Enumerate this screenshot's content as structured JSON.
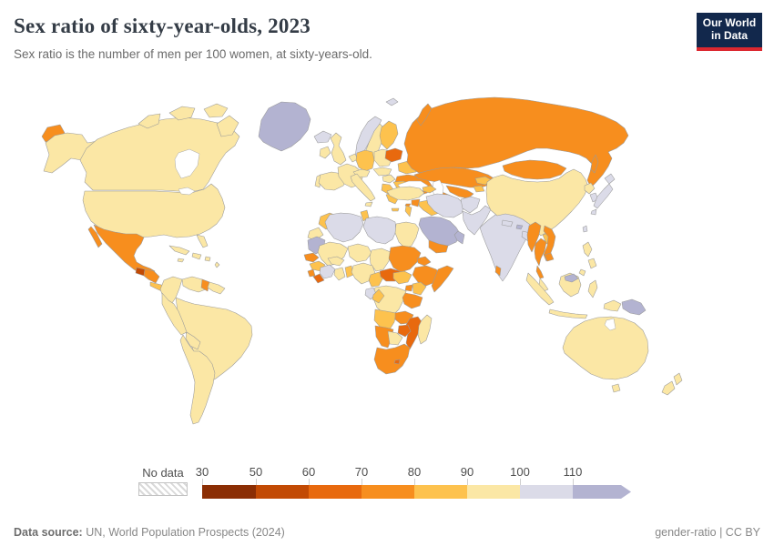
{
  "header": {
    "title": "Sex ratio of sixty-year-olds, 2023",
    "subtitle": "Sex ratio is the number of men per 100 women, at sixty-years-old.",
    "logo": {
      "line1": "Our World",
      "line2": "in Data",
      "bg_color": "#12284c",
      "accent_color": "#dc2830"
    }
  },
  "legend": {
    "no_data_label": "No data",
    "ticks": [
      "30",
      "50",
      "60",
      "70",
      "80",
      "90",
      "100",
      "110"
    ],
    "segments": [
      "b30_50",
      "b50_60",
      "b60_70",
      "b70_80",
      "b80_90",
      "b90_100",
      "b100_110",
      "b110plus"
    ],
    "bin_colors": {
      "b30_50": "#8B2E04",
      "b50_60": "#C24A04",
      "b60_70": "#E8690E",
      "b70_80": "#F78E1E",
      "b80_90": "#FDC24E",
      "b90_100": "#FBE7A5",
      "b100_110": "#DBDBE8",
      "b110plus": "#B3B3D1"
    }
  },
  "footer": {
    "source_label": "Data source:",
    "source_text": " UN, World Population Prospects (2024)",
    "license_text": "gender-ratio | CC BY"
  },
  "map": {
    "countries": {
      "chukotka_wrap": "b70_80",
      "alaska": "b90_100",
      "canada": "b90_100",
      "arctic_island_1": "b90_100",
      "arctic_island_2": "b90_100",
      "arctic_island_3": "b90_100",
      "baffin_island": "b90_100",
      "greenland": "b110plus",
      "usa": "b90_100",
      "florida": "b90_100",
      "mexico": "b70_80",
      "baja_california": "b70_80",
      "guatemala": "b50_60",
      "honduras_nicaragua": "b70_80",
      "costa_rica_panama": "b80_90",
      "cuba": "b90_100",
      "hispaniola": "b90_100",
      "jamaica": "b90_100",
      "puerto_rico": "b90_100",
      "antilles": "b90_100",
      "colombia": "b90_100",
      "venezuela": "b90_100",
      "guyana": "b70_80",
      "suriname_guiana": "b90_100",
      "brazil": "b90_100",
      "peru_ecuador": "b90_100",
      "bolivia": "b90_100",
      "chile_argentina": "b90_100",
      "iceland": "b100_110",
      "svalbard": "b100_110",
      "norway": "b100_110",
      "sweden": "b90_100",
      "finland": "b80_90",
      "denmark": "b90_100",
      "ireland": "b90_100",
      "uk": "b90_100",
      "portugal": "b90_100",
      "spain": "b90_100",
      "france": "b90_100",
      "benelux": "b90_100",
      "germany": "b80_90",
      "poland": "b90_100",
      "czech_slovakia": "b90_100",
      "switzerland_austria": "b90_100",
      "hungary": "b90_100",
      "italy": "b90_100",
      "sicily": "b90_100",
      "baltics": "b60_70",
      "belarus": "b80_90",
      "ukraine": "b70_80",
      "romania": "b80_90",
      "serbia_balkans": "b80_90",
      "bulgaria": "b80_90",
      "greece": "b80_90",
      "crete": "b80_90",
      "russia": "b70_80",
      "novaya_zemlya": "b70_80",
      "turkey": "b90_100",
      "cyprus": "b70_80",
      "syria": "b70_80",
      "israel_jordan": "b80_90",
      "iraq": "b80_90",
      "saudi_arabia": "b110plus",
      "yemen": "b70_80",
      "oman_uae": "b110plus",
      "iran": "b100_110",
      "caucasus": "b80_90",
      "kazakhstan": "b70_80",
      "uzbekistan": "b70_80",
      "turkmenistan": "b70_80",
      "kyrgyzstan": "b80_90",
      "tajikistan": "b80_90",
      "afghanistan": "b100_110",
      "pakistan": "b100_110",
      "india": "b100_110",
      "nepal": "b100_110",
      "bhutan": "b110plus",
      "bangladesh": "b100_110",
      "sri_lanka": "b70_80",
      "china": "b90_100",
      "mongolia": "b70_80",
      "north_korea": "b90_100",
      "south_korea": "b100_110",
      "japan_hokkaido": "b100_110",
      "japan_honshu": "b100_110",
      "japan_kyushu": "b100_110",
      "sakhalin": "b70_80",
      "taiwan": "b100_110",
      "myanmar": "b70_80",
      "thailand": "b70_80",
      "thai_peninsula": "b70_80",
      "vietnam": "b70_80",
      "cambodia": "b70_80",
      "laos": "b80_90",
      "malaysia": "b90_100",
      "sumatra": "b90_100",
      "java": "b90_100",
      "borneo": "b90_100",
      "sulawesi": "b90_100",
      "timor": "b90_100",
      "brunei": "b110plus",
      "philippines_north": "b90_100",
      "philippines_mid": "b90_100",
      "philippines_south": "b90_100",
      "west_new_guinea": "b90_100",
      "papua_new_guinea": "b110plus",
      "australia": "b90_100",
      "tasmania": "b90_100",
      "nz_north_island": "b90_100",
      "nz_south_island": "b90_100",
      "morocco": "b80_90",
      "western_sahara": "b90_100",
      "algeria": "b100_110",
      "tunisia": "b80_90",
      "libya": "b100_110",
      "egypt": "b90_100",
      "mauritania": "b110plus",
      "mali": "b90_100",
      "niger": "b90_100",
      "chad": "b90_100",
      "sudan": "b70_80",
      "eritrea": "b70_80",
      "ethiopia": "b70_80",
      "somalia": "b70_80",
      "senegal": "b70_80",
      "guinea": "b80_90",
      "sierra_leone": "b70_80",
      "liberia": "b60_70",
      "cote_divoire": "b100_110",
      "ghana": "b90_100",
      "togo_benin": "b80_90",
      "burkina_faso": "b90_100",
      "nigeria": "b90_100",
      "cameroon": "b80_90",
      "central_african_republic": "b60_70",
      "south_sudan": "b80_90",
      "drc": "b90_100",
      "gabon": "b100_110",
      "congo": "b80_90",
      "uganda": "b70_80",
      "kenya": "b80_90",
      "tanzania": "b70_80",
      "angola": "b80_90",
      "zambia": "b70_80",
      "mozambique": "b60_70",
      "zimbabwe": "b60_70",
      "namibia": "b70_80",
      "botswana": "b90_100",
      "south_africa": "b70_80",
      "lesotho": "b60_70",
      "madagascar": "b90_100"
    }
  }
}
